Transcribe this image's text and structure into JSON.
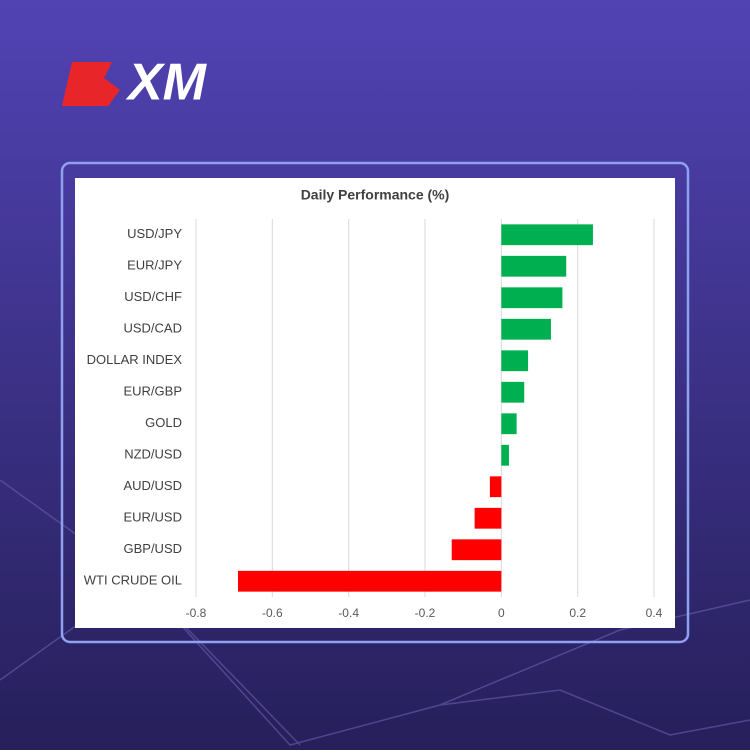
{
  "logo": "XM",
  "chart_data": {
    "type": "hbar",
    "title": "Daily Performance  (%)",
    "categories": [
      "USD/JPY",
      "EUR/JPY",
      "USD/CHF",
      "USD/CAD",
      "DOLLAR INDEX",
      "EUR/GBP",
      "GOLD",
      "NZD/USD",
      "AUD/USD",
      "EUR/USD",
      "GBP/USD",
      "WTI CRUDE OIL"
    ],
    "values": [
      0.24,
      0.17,
      0.16,
      0.13,
      0.07,
      0.06,
      0.04,
      0.02,
      -0.03,
      -0.07,
      -0.13,
      -0.69
    ],
    "colors": [
      "#00b050",
      "#00b050",
      "#00b050",
      "#00b050",
      "#00b050",
      "#00b050",
      "#00b050",
      "#00b050",
      "#ff0000",
      "#ff0000",
      "#ff0000",
      "#ff0000"
    ],
    "xlim": [
      -0.8,
      0.4
    ],
    "xticks": [
      -0.8,
      -0.6,
      -0.4,
      -0.2,
      0,
      0.2,
      0.4
    ],
    "grid": true
  }
}
